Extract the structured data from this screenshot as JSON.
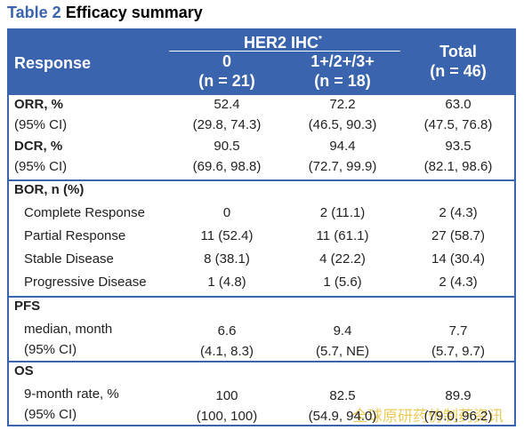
{
  "title": {
    "label": "Table 2",
    "text": "Efficacy summary"
  },
  "header": {
    "response": "Response",
    "group_title": "HER2 IHC",
    "group_note": "*",
    "groups": [
      {
        "name": "0",
        "n": "(n = 21)"
      },
      {
        "name": "1+/2+/3+",
        "n": "(n = 18)"
      }
    ],
    "total": {
      "name": "Total",
      "n": "(n = 46)"
    }
  },
  "sections": [
    {
      "heading": "ORR, %",
      "cells": [
        "52.4",
        "72.2",
        "63.0"
      ],
      "rows": [
        {
          "label": "(95% CI)",
          "cells": [
            "(29.8, 74.3)",
            "(46.5, 90.3)",
            "(47.5, 76.8)"
          ]
        }
      ]
    },
    {
      "heading": "DCR, %",
      "cells": [
        "90.5",
        "94.4",
        "93.5"
      ],
      "rows": [
        {
          "label": "(95% CI)",
          "cells": [
            "(69.6, 98.8)",
            "(72.7, 99.9)",
            "(82.1, 98.6)"
          ]
        }
      ]
    },
    {
      "heading": "BOR, n (%)",
      "rows": [
        {
          "label": "Complete Response",
          "cells": [
            "0",
            "2 (11.1)",
            "2 (4.3)"
          ]
        },
        {
          "label": "Partial Response",
          "cells": [
            "11 (52.4)",
            "11 (61.1)",
            "27 (58.7)"
          ]
        },
        {
          "label": "Stable Disease",
          "cells": [
            "8 (38.1)",
            "4 (22.2)",
            "14 (30.4)"
          ]
        },
        {
          "label": "Progressive Disease",
          "cells": [
            "1 (4.8)",
            "1 (5.6)",
            "2 (4.3)"
          ]
        }
      ]
    },
    {
      "heading": "PFS",
      "rows": [
        {
          "label": "median, month",
          "cells": [
            "6.6",
            "9.4",
            "7.7"
          ]
        },
        {
          "label": "(95% CI)",
          "cells": [
            "(4.1, 8.3)",
            "(5.7, NE)",
            "(5.7, 9.7)"
          ]
        }
      ]
    },
    {
      "heading": "OS",
      "rows": [
        {
          "label": "9-month rate, %",
          "cells": [
            "100",
            "82.5",
            "89.9"
          ]
        },
        {
          "label": "(95% CI)",
          "cells": [
            "(100, 100)",
            "(54.9, 94.0)",
            "(79.0, 96.2)"
          ]
        }
      ]
    }
  ],
  "watermark": "全球原研药仿制药资讯"
}
